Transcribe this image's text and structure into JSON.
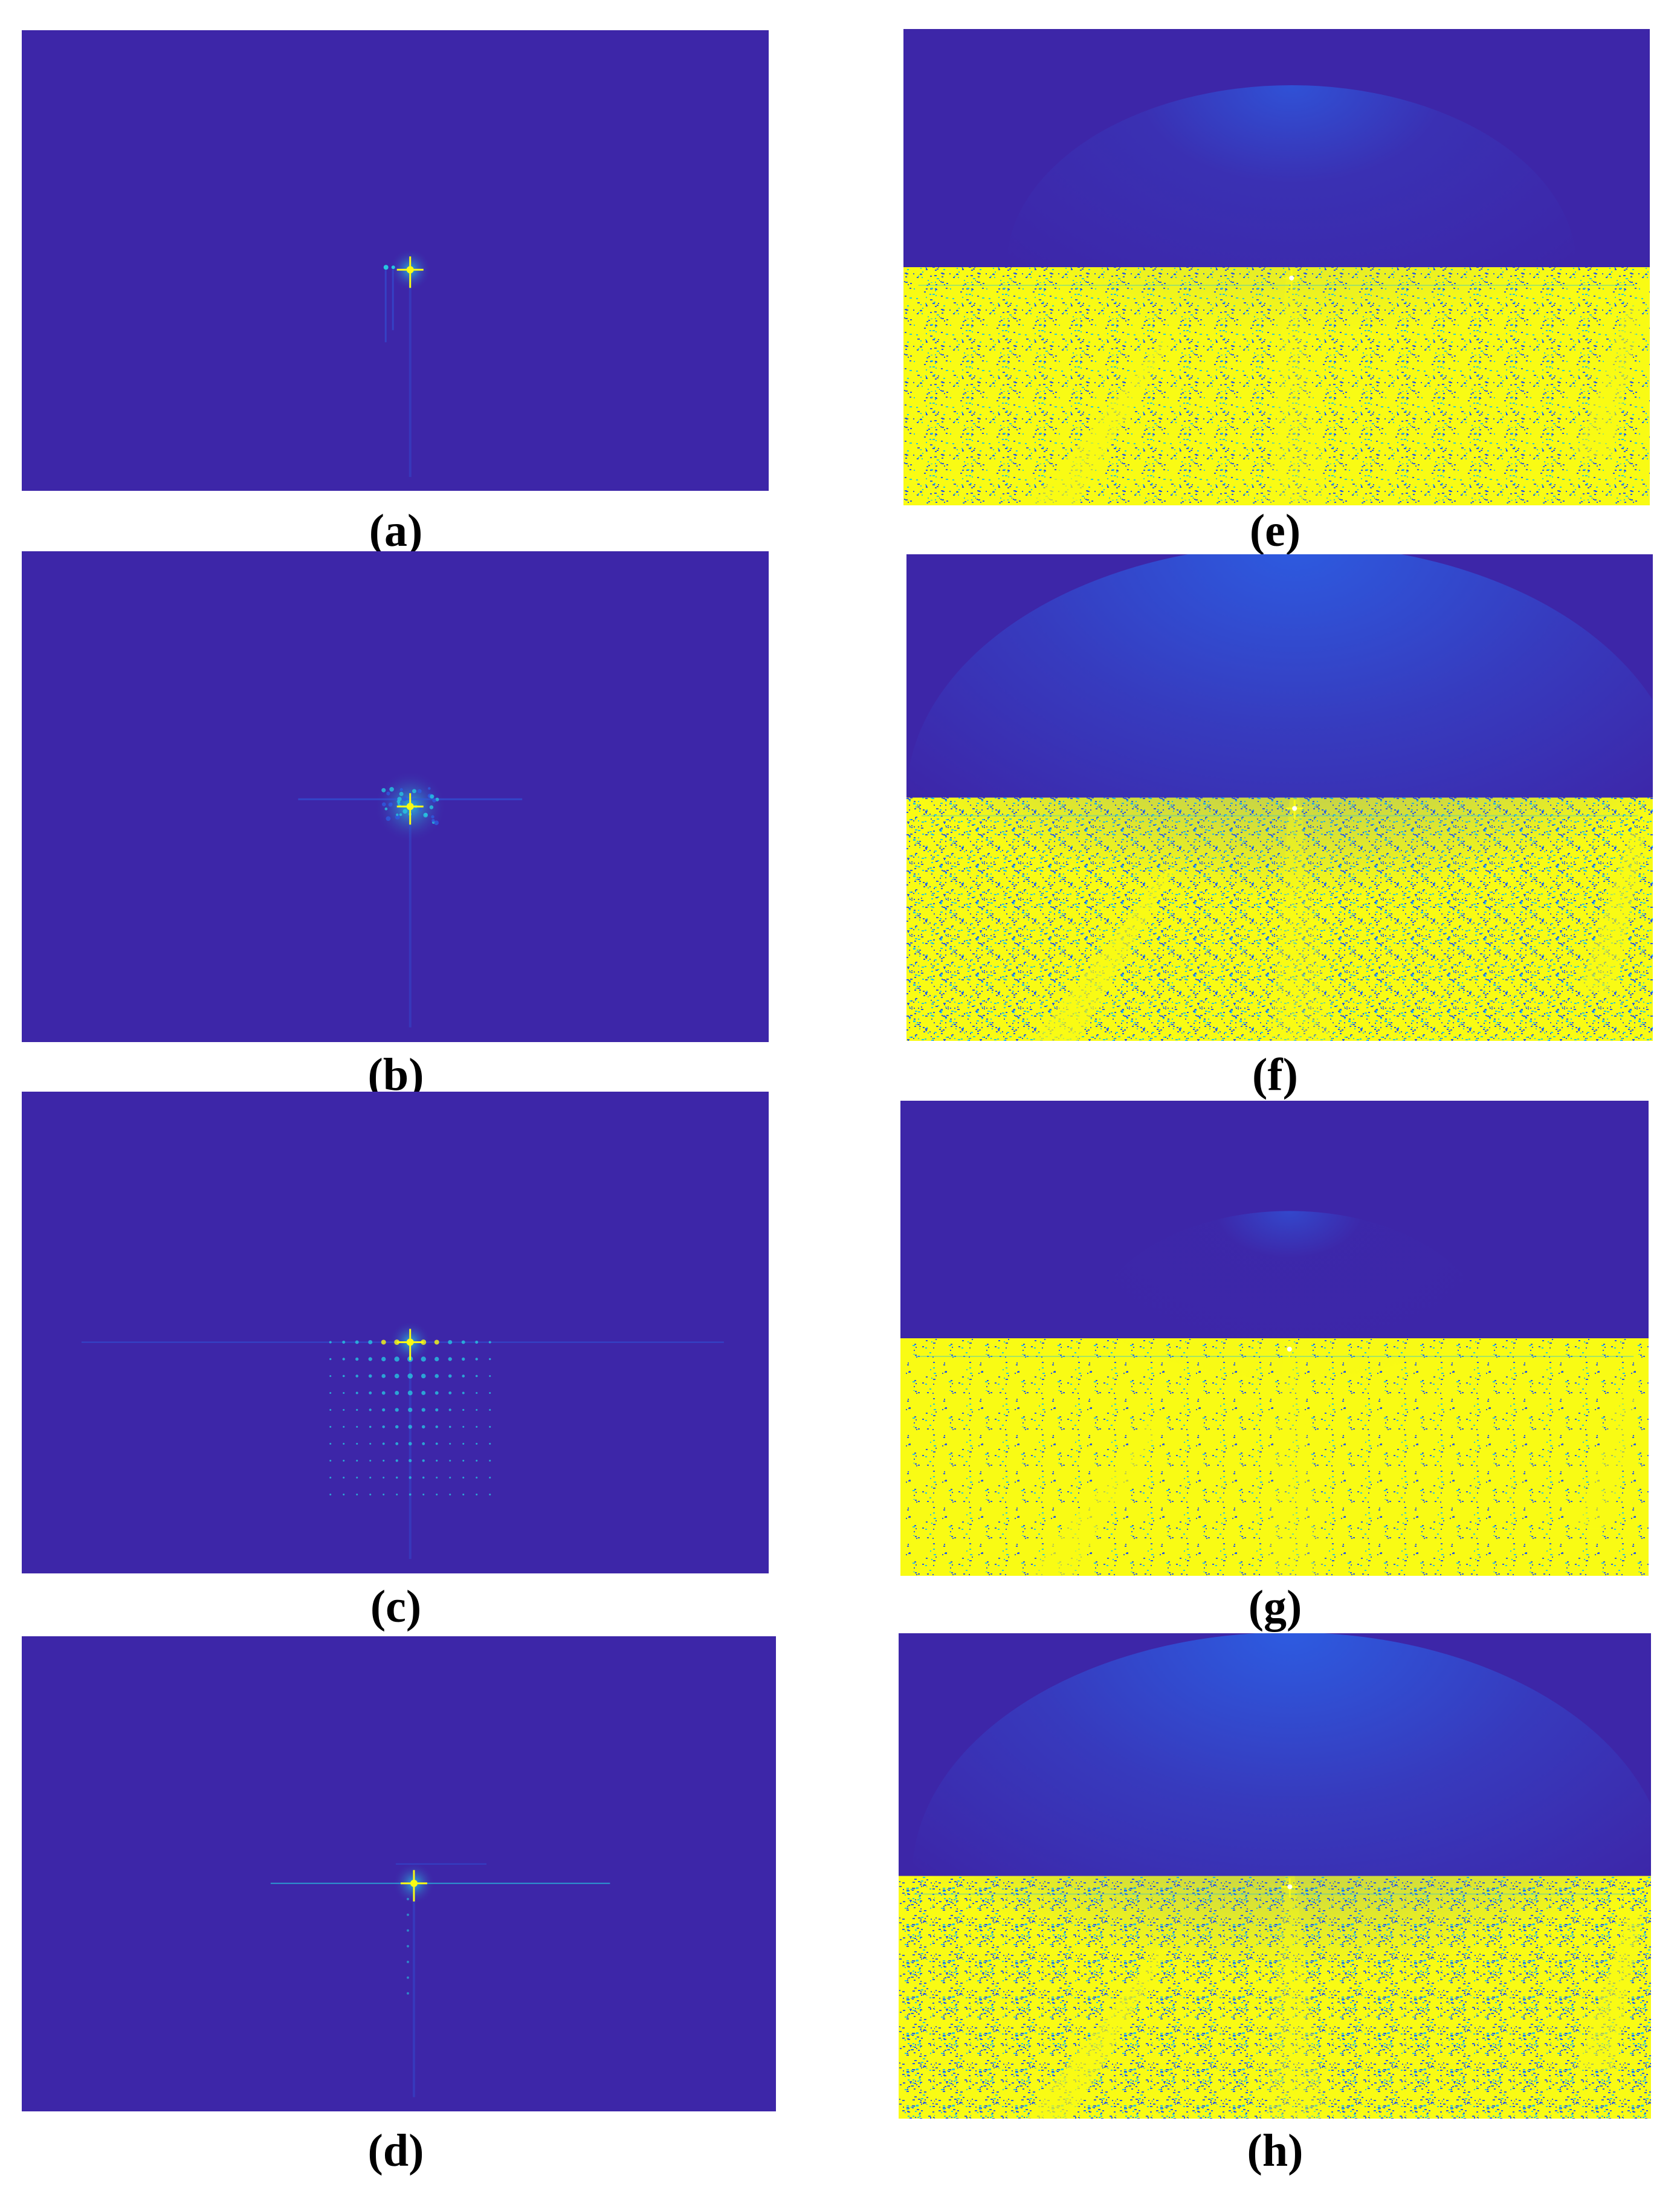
{
  "colors": {
    "dark": "#3D26A8",
    "mid": "#2D5BE0",
    "light": "#27C6E0",
    "bright": "#F9FB14"
  },
  "panels": [
    {
      "id": "a",
      "label": "(a)",
      "kind": "spectrum",
      "pattern": "sparse"
    },
    {
      "id": "b",
      "label": "(b)",
      "kind": "spectrum",
      "pattern": "cluster"
    },
    {
      "id": "c",
      "label": "(c)",
      "kind": "spectrum",
      "pattern": "grid"
    },
    {
      "id": "d",
      "label": "(d)",
      "kind": "spectrum",
      "pattern": "line"
    },
    {
      "id": "e",
      "label": "(e)",
      "kind": "road",
      "level": 0.78
    },
    {
      "id": "f",
      "label": "(f)",
      "kind": "road",
      "level": 0.55
    },
    {
      "id": "g",
      "label": "(g)",
      "kind": "road",
      "level": 0.97
    },
    {
      "id": "h",
      "label": "(h)",
      "kind": "road",
      "level": 0.58
    }
  ]
}
